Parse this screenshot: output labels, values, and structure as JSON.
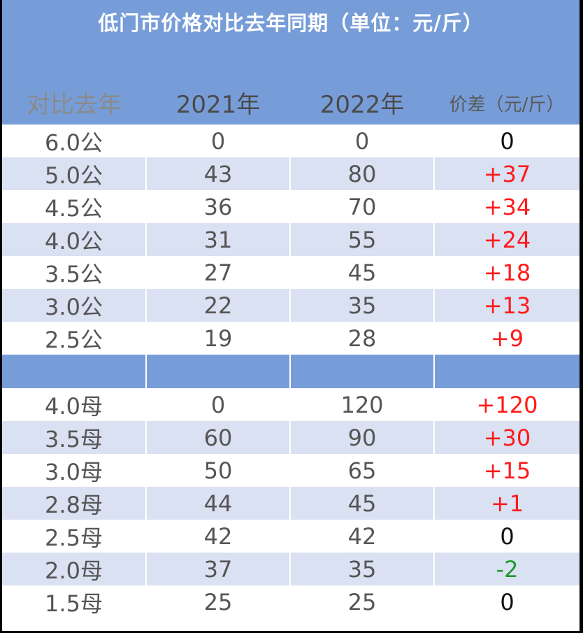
{
  "title": "低门市价格对比去年同期（单位：元/斤）",
  "columns": [
    "对比去年",
    "2021年",
    "2022年",
    "价差（元/斤）"
  ],
  "colors": {
    "header_bg": "#779dd8",
    "shade_row": "#d9e1f2",
    "increase": "#ff1a1a",
    "decrease": "#1f9a2e"
  },
  "rows_male": [
    {
      "spec": "6.0公",
      "y2021": "0",
      "y2022": "0",
      "diff": "0"
    },
    {
      "spec": "5.0公",
      "y2021": "43",
      "y2022": "80",
      "diff": "+37"
    },
    {
      "spec": "4.5公",
      "y2021": "36",
      "y2022": "70",
      "diff": "+34"
    },
    {
      "spec": "4.0公",
      "y2021": "31",
      "y2022": "55",
      "diff": "+24"
    },
    {
      "spec": "3.5公",
      "y2021": "27",
      "y2022": "45",
      "diff": "+18"
    },
    {
      "spec": "3.0公",
      "y2021": "22",
      "y2022": "35",
      "diff": "+13"
    },
    {
      "spec": "2.5公",
      "y2021": "19",
      "y2022": "28",
      "diff": "+9"
    }
  ],
  "rows_female": [
    {
      "spec": "4.0母",
      "y2021": "0",
      "y2022": "120",
      "diff": "+120"
    },
    {
      "spec": "3.5母",
      "y2021": "60",
      "y2022": "90",
      "diff": "+30"
    },
    {
      "spec": "3.0母",
      "y2021": "50",
      "y2022": "65",
      "diff": "+15"
    },
    {
      "spec": "2.8母",
      "y2021": "44",
      "y2022": "45",
      "diff": "+1"
    },
    {
      "spec": "2.5母",
      "y2021": "42",
      "y2022": "42",
      "diff": "0"
    },
    {
      "spec": "2.0母",
      "y2021": "37",
      "y2022": "35",
      "diff": "-2"
    },
    {
      "spec": "1.5母",
      "y2021": "25",
      "y2022": "25",
      "diff": "0"
    }
  ]
}
